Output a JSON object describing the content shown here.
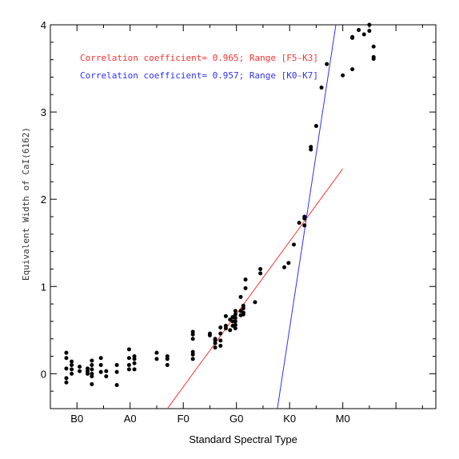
{
  "chart_data": {
    "type": "scatter",
    "xlabel": "Standard Spectral Type",
    "ylabel": "Equivalent Width of CaI(6162)",
    "xlim": [
      -0.5,
      6.75
    ],
    "ylim": [
      -0.4,
      4.0
    ],
    "x_ticks": [
      {
        "value": 0,
        "label": "B0"
      },
      {
        "value": 1,
        "label": "A0"
      },
      {
        "value": 2,
        "label": "F0"
      },
      {
        "value": 3,
        "label": "G0"
      },
      {
        "value": 4,
        "label": "K0"
      },
      {
        "value": 5,
        "label": "M0"
      }
    ],
    "y_ticks": [
      0,
      1,
      2,
      3,
      4
    ],
    "grid": false,
    "annotations": [
      {
        "text": "Correlation coefficient= 0.965; Range [F5-K3]",
        "color": "#ff3030"
      },
      {
        "text": "Correlation coefficient= 0.957; Range [K0-K7]",
        "color": "#3030ff"
      }
    ],
    "fit_lines": [
      {
        "color": "#ff3030",
        "x": [
          1.7,
          5.0
        ],
        "y": [
          -0.4,
          2.35
        ]
      },
      {
        "color": "#3030ff",
        "x": [
          3.77,
          4.87
        ],
        "y": [
          -0.4,
          4.0
        ]
      }
    ],
    "series": [
      {
        "color": "#000000",
        "points": [
          [
            -0.2,
            0.24
          ],
          [
            -0.2,
            0.18
          ],
          [
            -0.2,
            0.06
          ],
          [
            -0.2,
            -0.05
          ],
          [
            -0.2,
            -0.1
          ],
          [
            -0.1,
            0.14
          ],
          [
            -0.1,
            0.1
          ],
          [
            -0.1,
            0.05
          ],
          [
            -0.1,
            0.0
          ],
          [
            0.05,
            0.08
          ],
          [
            0.05,
            0.03
          ],
          [
            0.2,
            0.06
          ],
          [
            0.2,
            0.03
          ],
          [
            0.2,
            0.0
          ],
          [
            0.28,
            0.15
          ],
          [
            0.28,
            0.1
          ],
          [
            0.28,
            0.05
          ],
          [
            0.28,
            0.0
          ],
          [
            0.28,
            -0.03
          ],
          [
            0.28,
            -0.12
          ],
          [
            0.45,
            0.18
          ],
          [
            0.45,
            0.1
          ],
          [
            0.45,
            0.02
          ],
          [
            0.55,
            0.03
          ],
          [
            0.55,
            -0.03
          ],
          [
            0.75,
            0.1
          ],
          [
            0.75,
            0.02
          ],
          [
            0.75,
            -0.13
          ],
          [
            0.98,
            0.28
          ],
          [
            0.98,
            0.18
          ],
          [
            0.98,
            0.1
          ],
          [
            0.98,
            0.05
          ],
          [
            1.08,
            0.2
          ],
          [
            1.08,
            0.17
          ],
          [
            1.08,
            0.12
          ],
          [
            1.08,
            0.05
          ],
          [
            1.5,
            0.24
          ],
          [
            1.5,
            0.17
          ],
          [
            1.7,
            0.2
          ],
          [
            1.7,
            0.17
          ],
          [
            1.7,
            0.1
          ],
          [
            2.18,
            0.48
          ],
          [
            2.18,
            0.45
          ],
          [
            2.18,
            0.4
          ],
          [
            2.18,
            0.25
          ],
          [
            2.18,
            0.22
          ],
          [
            2.18,
            0.17
          ],
          [
            2.5,
            0.46
          ],
          [
            2.5,
            0.44
          ],
          [
            2.6,
            0.4
          ],
          [
            2.6,
            0.38
          ],
          [
            2.6,
            0.35
          ],
          [
            2.6,
            0.3
          ],
          [
            2.7,
            0.53
          ],
          [
            2.7,
            0.46
          ],
          [
            2.7,
            0.38
          ],
          [
            2.7,
            0.32
          ],
          [
            2.8,
            0.66
          ],
          [
            2.8,
            0.55
          ],
          [
            2.8,
            0.52
          ],
          [
            2.88,
            0.62
          ],
          [
            2.88,
            0.5
          ],
          [
            2.93,
            0.65
          ],
          [
            2.93,
            0.6
          ],
          [
            2.93,
            0.55
          ],
          [
            2.98,
            0.72
          ],
          [
            2.98,
            0.68
          ],
          [
            2.98,
            0.64
          ],
          [
            2.98,
            0.6
          ],
          [
            2.98,
            0.56
          ],
          [
            2.98,
            0.52
          ],
          [
            3.08,
            0.67
          ],
          [
            3.08,
            0.72
          ],
          [
            3.08,
            0.88
          ],
          [
            3.13,
            0.78
          ],
          [
            3.13,
            0.75
          ],
          [
            3.13,
            0.7
          ],
          [
            3.13,
            0.68
          ],
          [
            3.17,
            1.08
          ],
          [
            3.17,
            0.98
          ],
          [
            3.35,
            0.82
          ],
          [
            3.45,
            1.2
          ],
          [
            3.45,
            1.15
          ],
          [
            3.9,
            1.22
          ],
          [
            3.98,
            1.27
          ],
          [
            4.08,
            1.48
          ],
          [
            4.18,
            1.73
          ],
          [
            4.28,
            1.8
          ],
          [
            4.28,
            1.78
          ],
          [
            4.28,
            1.7
          ],
          [
            4.4,
            2.6
          ],
          [
            4.4,
            2.57
          ],
          [
            4.5,
            2.84
          ],
          [
            4.6,
            3.28
          ],
          [
            4.7,
            3.55
          ],
          [
            5.0,
            3.42
          ],
          [
            5.18,
            3.86
          ],
          [
            5.18,
            3.85
          ],
          [
            5.18,
            3.49
          ],
          [
            5.3,
            3.94
          ],
          [
            5.4,
            3.89
          ],
          [
            5.5,
            4.0
          ],
          [
            5.5,
            3.93
          ],
          [
            5.58,
            3.75
          ],
          [
            5.58,
            3.63
          ],
          [
            5.58,
            3.61
          ]
        ]
      }
    ]
  }
}
